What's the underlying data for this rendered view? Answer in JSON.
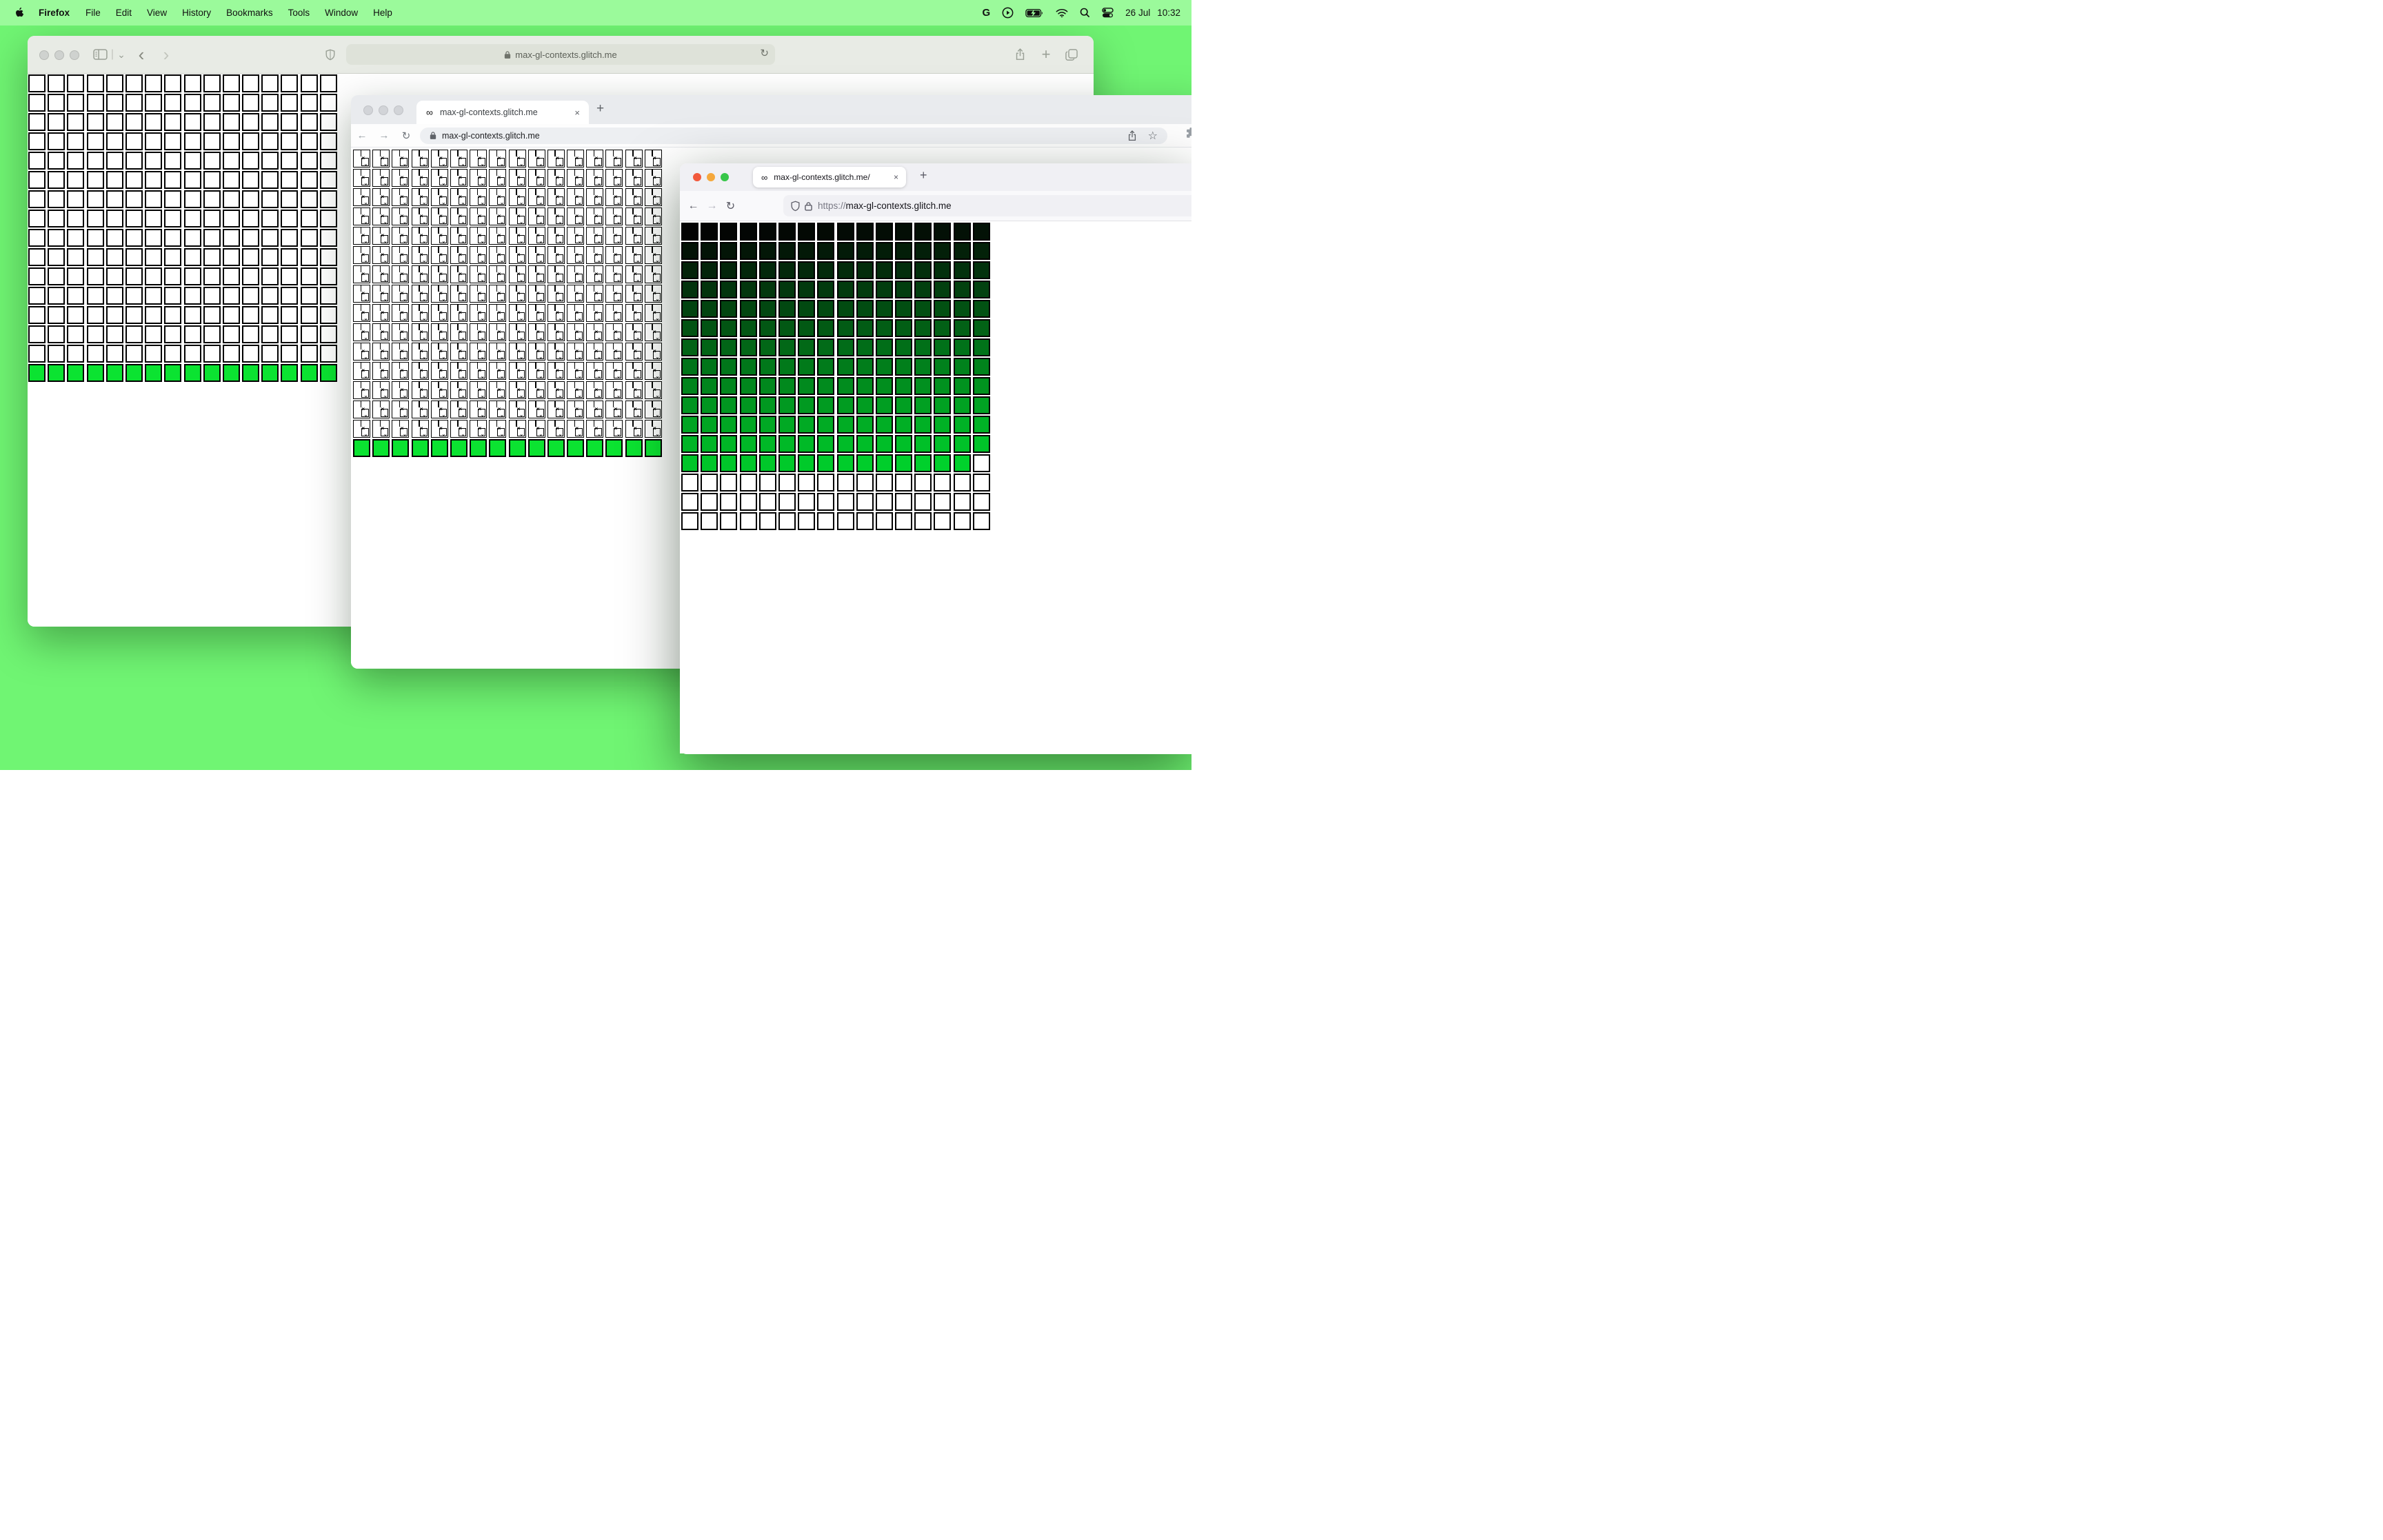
{
  "desktop": {
    "background_color": "#70f573"
  },
  "menu_bar": {
    "app_name": "Firefox",
    "items": [
      "File",
      "Edit",
      "View",
      "History",
      "Bookmarks",
      "Tools",
      "Window",
      "Help"
    ],
    "status_icons": [
      "google-icon",
      "play-icon",
      "battery-charging-icon",
      "wifi-icon",
      "search-icon",
      "control-center-icon"
    ],
    "google_glyph": "G",
    "date": "26 Jul",
    "time": "10:32"
  },
  "safari_window": {
    "url": "max-gl-contexts.glitch.me",
    "reload_glyph": "↻",
    "back_glyph": "‹",
    "forward_glyph": "›",
    "sidebar_chevron_glyph": "⌄",
    "new_tab_glyph": "+"
  },
  "chrome_window": {
    "tab_favicon_glyph": "∞",
    "tab_title": "max-gl-contexts.glitch.me",
    "tab_close_glyph": "×",
    "new_tab_glyph": "+",
    "back_glyph": "←",
    "forward_glyph": "→",
    "reload_glyph": "↻",
    "url": "max-gl-contexts.glitch.me",
    "bookmark_star_glyph": "☆"
  },
  "firefox_window": {
    "tab_favicon_glyph": "∞",
    "tab_title": "max-gl-contexts.glitch.me/",
    "tab_close_glyph": "×",
    "new_tab_glyph": "+",
    "back_glyph": "←",
    "forward_glyph": "→",
    "reload_glyph": "↻",
    "url_scheme": "https://",
    "url_host": "max-gl-contexts.glitch.me"
  },
  "grids": {
    "safari": {
      "cols": 16,
      "rows": 16,
      "pattern": "white-then-green-row",
      "white_cell_color": "#ffffff",
      "green_row_color": "#0be331",
      "border_color": "#000000"
    },
    "chrome": {
      "cols": 16,
      "rows": 16,
      "pattern": "broken-image-then-green-row",
      "green_row_color": "#0be331",
      "border_color": "#000000",
      "broken_x_glyph": "×",
      "broken_wave_glyph": "⌄"
    },
    "firefox": {
      "cols": 16,
      "rows": 16,
      "pattern": "gradient-then-white",
      "gradient_cells": 207,
      "gradient_start": "#030303",
      "gradient_end": "#00d22c",
      "trailing_white_cells": 49,
      "white_cell_color": "#ffffff",
      "border_color": "#000000"
    }
  }
}
